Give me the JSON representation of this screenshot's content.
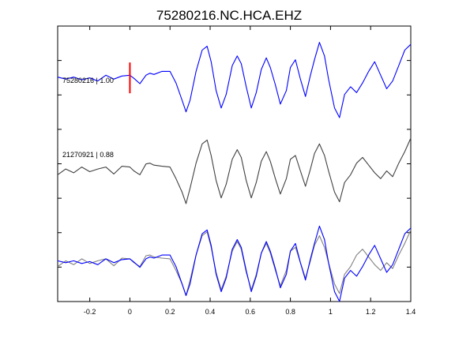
{
  "chart_data": {
    "type": "line",
    "title": "75280216.NC.HCA.EHZ",
    "xlabel": "",
    "ylabel": "",
    "xlim": [
      -0.36,
      1.4
    ],
    "xticks": [
      -0.2,
      0,
      0.2,
      0.4,
      0.6,
      0.8,
      1,
      1.2,
      1.4
    ],
    "xtick_labels": [
      "-0.2",
      "0",
      "0.2",
      "0.4",
      "0.6",
      "0.8",
      "1",
      "1.2",
      "1.4"
    ],
    "ytick_count": 7,
    "grid": false,
    "legend": "none",
    "colors": {
      "master": "#0000ff",
      "reference": "#404040",
      "overlay_reference": "#808080",
      "pick": "#ff0000"
    },
    "traces": [
      {
        "label": "75280216 | 1.00",
        "kind": "master",
        "x": [
          -0.36,
          -0.32,
          -0.28,
          -0.24,
          -0.2,
          -0.16,
          -0.12,
          -0.08,
          -0.04,
          0.0,
          0.02,
          0.05,
          0.08,
          0.1,
          0.12,
          0.16,
          0.2,
          0.23,
          0.26,
          0.28,
          0.3,
          0.33,
          0.36,
          0.385,
          0.405,
          0.43,
          0.455,
          0.48,
          0.51,
          0.535,
          0.555,
          0.58,
          0.605,
          0.63,
          0.655,
          0.68,
          0.7,
          0.725,
          0.75,
          0.78,
          0.8,
          0.825,
          0.85,
          0.875,
          0.9,
          0.92,
          0.945,
          0.97,
          0.99,
          1.02,
          1.045,
          1.07,
          1.1,
          1.13,
          1.16,
          1.19,
          1.22,
          1.25,
          1.28,
          1.31,
          1.34,
          1.37,
          1.4
        ],
        "y": [
          0.05,
          0.0,
          0.05,
          -0.02,
          0.03,
          -0.05,
          0.1,
          0.0,
          0.08,
          0.1,
          0.02,
          -0.12,
          0.1,
          0.15,
          0.12,
          0.2,
          0.2,
          -0.1,
          -0.55,
          -0.85,
          -0.55,
          0.2,
          0.75,
          0.85,
          0.45,
          -0.3,
          -0.75,
          -0.4,
          0.35,
          0.6,
          0.4,
          -0.2,
          -0.75,
          -0.35,
          0.25,
          0.55,
          0.3,
          -0.15,
          -0.65,
          -0.3,
          0.3,
          0.5,
          0.0,
          -0.45,
          0.1,
          0.5,
          0.95,
          0.6,
          0.0,
          -0.75,
          -1.0,
          -0.4,
          -0.2,
          -0.35,
          -0.1,
          0.2,
          0.45,
          0.1,
          -0.25,
          -0.05,
          0.35,
          0.75,
          0.9
        ]
      },
      {
        "label": "21270921 | 0.88",
        "kind": "reference",
        "x": [
          -0.36,
          -0.32,
          -0.28,
          -0.24,
          -0.2,
          -0.16,
          -0.12,
          -0.08,
          -0.04,
          0.0,
          0.02,
          0.05,
          0.08,
          0.1,
          0.12,
          0.16,
          0.2,
          0.23,
          0.26,
          0.28,
          0.3,
          0.33,
          0.36,
          0.385,
          0.405,
          0.43,
          0.455,
          0.48,
          0.51,
          0.535,
          0.555,
          0.58,
          0.605,
          0.63,
          0.655,
          0.68,
          0.7,
          0.725,
          0.75,
          0.78,
          0.8,
          0.825,
          0.85,
          0.875,
          0.9,
          0.92,
          0.945,
          0.97,
          0.99,
          1.02,
          1.045,
          1.07,
          1.1,
          1.13,
          1.16,
          1.19,
          1.22,
          1.25,
          1.28,
          1.31,
          1.34,
          1.37,
          1.4
        ],
        "y": [
          -0.1,
          0.05,
          -0.05,
          0.1,
          -0.02,
          0.05,
          0.1,
          -0.08,
          0.12,
          0.1,
          0.0,
          -0.1,
          0.18,
          0.2,
          0.15,
          0.12,
          0.1,
          -0.2,
          -0.55,
          -0.85,
          -0.45,
          0.2,
          0.7,
          0.8,
          0.4,
          -0.25,
          -0.7,
          -0.35,
          0.3,
          0.55,
          0.35,
          -0.25,
          -0.7,
          -0.3,
          0.25,
          0.5,
          0.25,
          -0.2,
          -0.6,
          -0.2,
          0.3,
          0.4,
          0.0,
          -0.4,
          0.05,
          0.45,
          0.7,
          0.4,
          0.0,
          -0.55,
          -0.8,
          -0.3,
          -0.1,
          0.2,
          0.35,
          0.15,
          -0.05,
          -0.2,
          0.0,
          -0.15,
          0.2,
          0.5,
          0.85
        ]
      },
      {
        "label": "",
        "kind": "overlay",
        "note": "",
        "x": [
          -0.36,
          -0.32,
          -0.28,
          -0.24,
          -0.2,
          -0.16,
          -0.12,
          -0.08,
          -0.04,
          0.0,
          0.02,
          0.05,
          0.08,
          0.1,
          0.12,
          0.16,
          0.2,
          0.23,
          0.26,
          0.28,
          0.3,
          0.33,
          0.36,
          0.385,
          0.405,
          0.43,
          0.455,
          0.48,
          0.51,
          0.535,
          0.555,
          0.58,
          0.605,
          0.63,
          0.655,
          0.68,
          0.7,
          0.725,
          0.75,
          0.78,
          0.8,
          0.825,
          0.85,
          0.875,
          0.9,
          0.92,
          0.945,
          0.97,
          0.99,
          1.02,
          1.045,
          1.07,
          1.1,
          1.13,
          1.16,
          1.19,
          1.22,
          1.25,
          1.28,
          1.31,
          1.34,
          1.37,
          1.4
        ],
        "y_master": [
          0.05,
          0.0,
          0.05,
          -0.02,
          0.03,
          -0.05,
          0.1,
          0.0,
          0.08,
          0.1,
          0.02,
          -0.12,
          0.1,
          0.15,
          0.12,
          0.2,
          0.2,
          -0.1,
          -0.55,
          -0.85,
          -0.55,
          0.2,
          0.75,
          0.85,
          0.45,
          -0.3,
          -0.75,
          -0.4,
          0.35,
          0.6,
          0.4,
          -0.2,
          -0.75,
          -0.35,
          0.25,
          0.55,
          0.3,
          -0.15,
          -0.65,
          -0.3,
          0.3,
          0.5,
          0.0,
          -0.45,
          0.1,
          0.5,
          0.95,
          0.6,
          0.0,
          -0.75,
          -1.0,
          -0.4,
          -0.2,
          -0.35,
          -0.1,
          0.2,
          0.45,
          0.1,
          -0.25,
          -0.05,
          0.35,
          0.75,
          0.9
        ],
        "y_reference": [
          -0.1,
          0.05,
          -0.05,
          0.1,
          -0.02,
          0.05,
          0.1,
          -0.08,
          0.12,
          0.1,
          0.0,
          -0.1,
          0.18,
          0.2,
          0.15,
          0.12,
          0.1,
          -0.2,
          -0.55,
          -0.85,
          -0.45,
          0.2,
          0.7,
          0.8,
          0.4,
          -0.25,
          -0.7,
          -0.35,
          0.3,
          0.55,
          0.35,
          -0.25,
          -0.7,
          -0.3,
          0.25,
          0.5,
          0.25,
          -0.2,
          -0.6,
          -0.2,
          0.3,
          0.4,
          0.0,
          -0.4,
          0.05,
          0.45,
          0.7,
          0.4,
          0.0,
          -0.55,
          -0.8,
          -0.3,
          -0.1,
          0.2,
          0.35,
          0.15,
          -0.05,
          -0.2,
          0.0,
          -0.15,
          0.2,
          0.5,
          0.85
        ]
      }
    ],
    "pick_time": 0
  }
}
